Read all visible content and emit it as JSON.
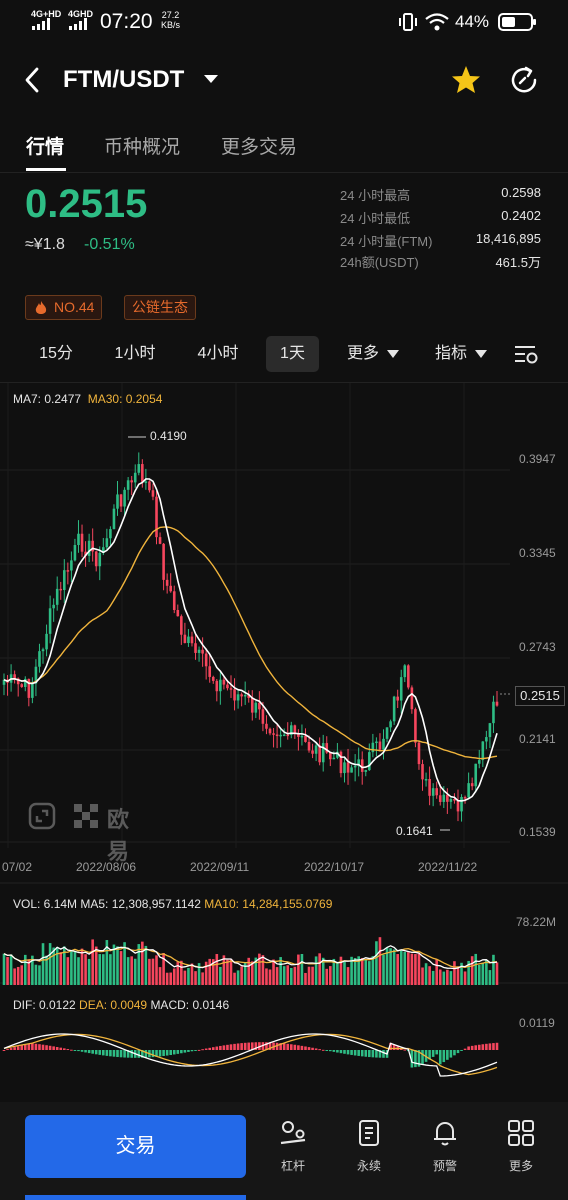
{
  "status_bar": {
    "network1": "4G+HD",
    "network2": "4GHD",
    "time": "07:20",
    "speed_value": "27.2",
    "speed_unit": "KB/s",
    "battery": "44%"
  },
  "header": {
    "pair": "FTM/USDT",
    "back_icon": "back-arrow-icon",
    "favorite_icon": "star-icon",
    "refresh_icon": "refresh-icon"
  },
  "tabs": [
    {
      "label": "行情",
      "active": true
    },
    {
      "label": "币种概况",
      "active": false
    },
    {
      "label": "更多交易",
      "active": false
    }
  ],
  "ticker": {
    "price": "0.2515",
    "cny": "≈¥1.8",
    "change": "-0.51%",
    "stats": [
      {
        "label": "24 小时最高",
        "value": "0.2598"
      },
      {
        "label": "24 小时最低",
        "value": "0.2402"
      },
      {
        "label": "24 小时量(FTM)",
        "value": "18,416,895"
      },
      {
        "label": "24h额(USDT)",
        "value": "461.5万"
      }
    ]
  },
  "tags": [
    "NO.44",
    "公链生态"
  ],
  "intervals": [
    {
      "label": "15分",
      "active": false
    },
    {
      "label": "1小时",
      "active": false
    },
    {
      "label": "4小时",
      "active": false
    },
    {
      "label": "1天",
      "active": true
    },
    {
      "label": "更多",
      "active": false,
      "dropdown": true
    },
    {
      "label": "指标",
      "active": false,
      "dropdown": true
    }
  ],
  "chart_data": {
    "type": "candlestick",
    "interval": "1D",
    "legend": {
      "ma7": "MA7: 0.2477",
      "ma30": "MA30: 0.2054"
    },
    "y_ticks": [
      "0.3947",
      "0.3345",
      "0.2743",
      "0.2141",
      "0.1539"
    ],
    "x_ticks": [
      "07/02",
      "2022/08/06",
      "2022/09/11",
      "2022/10/17",
      "2022/11/22"
    ],
    "high_marker": "0.4190",
    "low_marker": "0.1641",
    "current_price_tag": "0.2515",
    "watermark": "欧易",
    "volume": {
      "legend_vol": "VOL: 6.14M",
      "legend_ma5": "MA5: 12,308,957.1142",
      "legend_ma10": "MA10: 14,284,155.0769",
      "max_label": "78.22M"
    },
    "macd": {
      "legend_dif": "DIF: 0.0122",
      "legend_dea": "DEA: 0.0049",
      "legend_macd": "MACD: 0.0146",
      "max_label": "0.0119"
    },
    "colors": {
      "up": "#2ebd85",
      "down": "#f6465d",
      "ma7": "#ffffff",
      "ma30": "#f0b43c"
    }
  },
  "bottom_bar": {
    "trade": "交易",
    "items": [
      {
        "label": "杠杆",
        "icon": "leverage-icon"
      },
      {
        "label": "永续",
        "icon": "perpetual-icon"
      },
      {
        "label": "预警",
        "icon": "bell-icon"
      },
      {
        "label": "更多",
        "icon": "grid-icon"
      }
    ]
  }
}
